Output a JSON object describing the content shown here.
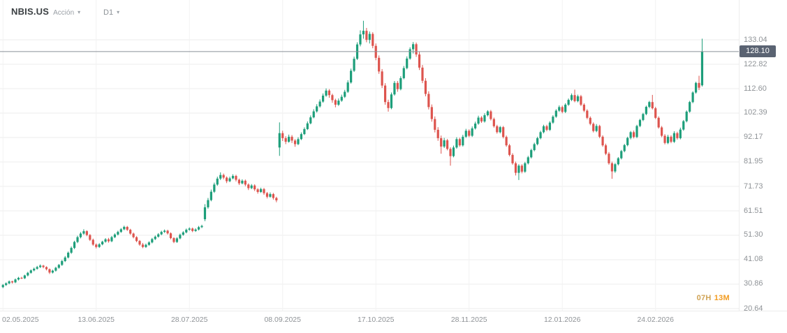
{
  "header": {
    "symbol": "NBIS.US",
    "instrument_type": "Acción",
    "symbol_caret": "▾",
    "timeframe": "D1",
    "timeframe_caret": "▾"
  },
  "price_axis": {
    "current_price_label": "128.10"
  },
  "footer": {
    "countdown_hours": "07H",
    "countdown_minutes": "13M"
  },
  "colors": {
    "up": "#1d9e7a",
    "down": "#dd544e",
    "grid_h": "#ededed",
    "grid_v": "#f2f2f2",
    "price_line": "#8a9199",
    "badge_bg": "#5a6372",
    "axis_text": "#8f9397",
    "countdown_hours": "#d0a355",
    "countdown_minutes": "#f29b1f"
  },
  "chart_data": {
    "type": "candlestick",
    "title": "NBIS.US daily candlestick chart",
    "symbol": "NBIS.US",
    "timeframe": "D1",
    "legend_position": "none",
    "grid": true,
    "current_price": 128.1,
    "ylim": [
      20.64,
      141.0
    ],
    "y_ticks": [
      "133.04",
      "122.82",
      "112.60",
      "102.39",
      "92.17",
      "81.95",
      "71.73",
      "61.51",
      "51.30",
      "41.08",
      "30.86",
      "20.64"
    ],
    "x_tick_labels": [
      "02.05.2025",
      "13.06.2025",
      "28.07.2025",
      "08.09.2025",
      "17.10.2025",
      "28.11.2025",
      "12.01.2026",
      "24.02.2026"
    ],
    "x_tick_indices": [
      0,
      30,
      60,
      90,
      120,
      150,
      180,
      210
    ],
    "ohlc": [
      [
        29.6,
        30.9,
        29.2,
        30.5
      ],
      [
        30.5,
        31.6,
        30.1,
        31.2
      ],
      [
        31.2,
        32.4,
        30.8,
        32.0
      ],
      [
        32.0,
        32.3,
        31.1,
        31.6
      ],
      [
        31.6,
        33.2,
        31.3,
        32.8
      ],
      [
        32.8,
        33.9,
        32.4,
        33.5
      ],
      [
        33.5,
        33.9,
        33.0,
        33.3
      ],
      [
        33.3,
        34.8,
        33.0,
        34.5
      ],
      [
        34.5,
        36.0,
        34.1,
        35.6
      ],
      [
        35.6,
        37.0,
        35.2,
        36.6
      ],
      [
        36.6,
        37.8,
        36.2,
        37.3
      ],
      [
        37.3,
        38.5,
        36.9,
        38.0
      ],
      [
        38.0,
        39.1,
        37.6,
        38.6
      ],
      [
        38.6,
        38.9,
        37.5,
        38.0
      ],
      [
        38.0,
        38.3,
        36.6,
        37.1
      ],
      [
        37.1,
        37.4,
        35.1,
        35.7
      ],
      [
        35.7,
        36.9,
        35.3,
        36.5
      ],
      [
        36.5,
        38.1,
        36.1,
        37.7
      ],
      [
        37.7,
        39.3,
        37.3,
        38.9
      ],
      [
        38.9,
        41.0,
        38.5,
        40.5
      ],
      [
        40.5,
        42.6,
        40.1,
        42.0
      ],
      [
        42.0,
        44.5,
        41.6,
        44.0
      ],
      [
        44.0,
        46.6,
        43.5,
        46.0
      ],
      [
        46.0,
        49.0,
        45.5,
        48.5
      ],
      [
        48.5,
        51.1,
        48.0,
        50.5
      ],
      [
        50.5,
        52.6,
        50.0,
        52.0
      ],
      [
        52.0,
        53.8,
        51.5,
        53.0
      ],
      [
        53.0,
        53.4,
        50.9,
        51.4
      ],
      [
        51.4,
        51.8,
        48.9,
        49.4
      ],
      [
        49.4,
        49.9,
        46.9,
        47.4
      ],
      [
        47.4,
        47.9,
        45.8,
        46.4
      ],
      [
        46.4,
        48.0,
        46.0,
        47.5
      ],
      [
        47.5,
        49.0,
        47.1,
        48.6
      ],
      [
        48.6,
        50.1,
        48.2,
        49.6
      ],
      [
        49.6,
        50.2,
        48.2,
        48.8
      ],
      [
        48.8,
        51.0,
        48.4,
        50.5
      ],
      [
        50.5,
        52.1,
        50.1,
        51.6
      ],
      [
        51.6,
        53.2,
        51.2,
        52.7
      ],
      [
        52.7,
        54.3,
        52.3,
        53.8
      ],
      [
        53.8,
        55.3,
        53.4,
        54.8
      ],
      [
        54.8,
        55.2,
        53.1,
        53.6
      ],
      [
        53.6,
        54.0,
        51.5,
        52.0
      ],
      [
        52.0,
        52.4,
        50.0,
        50.5
      ],
      [
        50.5,
        50.9,
        48.4,
        48.9
      ],
      [
        48.9,
        49.3,
        46.9,
        47.4
      ],
      [
        47.4,
        48.1,
        45.9,
        46.4
      ],
      [
        46.4,
        47.8,
        46.0,
        47.3
      ],
      [
        47.3,
        48.8,
        46.9,
        48.3
      ],
      [
        48.3,
        50.2,
        47.9,
        49.7
      ],
      [
        49.7,
        51.2,
        49.3,
        50.7
      ],
      [
        50.7,
        52.2,
        50.3,
        51.7
      ],
      [
        51.7,
        53.2,
        51.3,
        52.7
      ],
      [
        52.7,
        53.7,
        52.3,
        53.2
      ],
      [
        53.2,
        53.6,
        51.6,
        52.1
      ],
      [
        52.1,
        52.5,
        49.6,
        50.1
      ],
      [
        50.1,
        50.5,
        48.0,
        48.5
      ],
      [
        48.5,
        50.5,
        48.1,
        50.0
      ],
      [
        50.0,
        52.0,
        49.6,
        51.5
      ],
      [
        51.5,
        53.0,
        51.1,
        52.5
      ],
      [
        52.5,
        54.1,
        52.1,
        53.6
      ],
      [
        53.6,
        54.6,
        53.2,
        54.1
      ],
      [
        54.1,
        54.5,
        52.6,
        53.1
      ],
      [
        53.1,
        54.2,
        52.7,
        53.7
      ],
      [
        53.7,
        55.2,
        53.3,
        54.7
      ],
      [
        54.7,
        55.7,
        54.3,
        55.2
      ],
      [
        58.0,
        64.3,
        57.2,
        63.0
      ],
      [
        63.0,
        66.9,
        62.4,
        66.0
      ],
      [
        66.0,
        70.4,
        65.5,
        69.5
      ],
      [
        69.5,
        73.3,
        69.0,
        72.5
      ],
      [
        72.5,
        75.8,
        72.0,
        75.0
      ],
      [
        75.0,
        77.6,
        74.4,
        76.5
      ],
      [
        76.5,
        77.1,
        74.7,
        75.4
      ],
      [
        75.4,
        75.9,
        73.1,
        73.9
      ],
      [
        73.9,
        75.8,
        73.5,
        75.1
      ],
      [
        75.1,
        76.8,
        74.7,
        76.1
      ],
      [
        76.1,
        76.6,
        73.8,
        74.5
      ],
      [
        74.5,
        75.0,
        72.3,
        73.0
      ],
      [
        73.0,
        74.7,
        72.6,
        74.1
      ],
      [
        74.1,
        74.6,
        71.8,
        72.5
      ],
      [
        72.5,
        73.0,
        70.2,
        71.0
      ],
      [
        71.0,
        72.7,
        70.6,
        72.1
      ],
      [
        72.1,
        72.6,
        69.8,
        70.5
      ],
      [
        70.5,
        71.0,
        68.7,
        69.4
      ],
      [
        69.4,
        71.2,
        69.0,
        70.6
      ],
      [
        70.6,
        71.1,
        68.2,
        68.9
      ],
      [
        68.9,
        69.4,
        66.7,
        67.4
      ],
      [
        67.4,
        69.2,
        67.0,
        68.5
      ],
      [
        68.5,
        69.0,
        66.2,
        66.9
      ],
      [
        66.9,
        67.4,
        65.1,
        65.9
      ],
      [
        88.0,
        98.5,
        84.5,
        94.0
      ],
      [
        94.0,
        95.0,
        90.7,
        91.9
      ],
      [
        91.9,
        92.7,
        89.4,
        90.4
      ],
      [
        90.4,
        93.4,
        90.0,
        92.5
      ],
      [
        92.5,
        93.2,
        89.9,
        90.9
      ],
      [
        90.9,
        91.5,
        88.3,
        89.4
      ],
      [
        89.4,
        92.3,
        89.0,
        91.5
      ],
      [
        91.5,
        94.3,
        91.1,
        93.6
      ],
      [
        93.6,
        96.4,
        93.2,
        95.7
      ],
      [
        95.7,
        98.9,
        95.3,
        98.1
      ],
      [
        98.1,
        101.4,
        97.7,
        100.6
      ],
      [
        100.6,
        104.0,
        100.2,
        103.1
      ],
      [
        103.1,
        106.1,
        102.6,
        105.2
      ],
      [
        105.2,
        108.1,
        104.7,
        107.2
      ],
      [
        107.2,
        110.6,
        106.7,
        109.7
      ],
      [
        109.7,
        112.7,
        109.2,
        111.8
      ],
      [
        111.8,
        112.4,
        108.8,
        109.9
      ],
      [
        109.9,
        110.5,
        106.7,
        107.8
      ],
      [
        107.8,
        108.4,
        104.8,
        105.9
      ],
      [
        105.9,
        108.5,
        105.4,
        107.6
      ],
      [
        107.6,
        110.1,
        107.1,
        109.2
      ],
      [
        109.2,
        112.1,
        108.7,
        111.3
      ],
      [
        111.3,
        116.1,
        110.8,
        115.2
      ],
      [
        115.2,
        121.0,
        114.7,
        120.1
      ],
      [
        120.1,
        126.0,
        119.6,
        125.1
      ],
      [
        125.1,
        132.0,
        124.6,
        131.1
      ],
      [
        131.1,
        137.0,
        130.3,
        135.3
      ],
      [
        135.3,
        141.0,
        133.5,
        136.8
      ],
      [
        136.8,
        138.0,
        132.0,
        133.0
      ],
      [
        133.0,
        136.5,
        131.5,
        135.5
      ],
      [
        135.5,
        136.2,
        129.5,
        130.5
      ],
      [
        130.5,
        131.5,
        124.5,
        125.5
      ],
      [
        125.5,
        126.5,
        118.8,
        119.8
      ],
      [
        119.8,
        120.8,
        112.9,
        113.9
      ],
      [
        113.9,
        114.9,
        105.9,
        107.0
      ],
      [
        107.0,
        108.0,
        103.0,
        104.5
      ],
      [
        104.5,
        111.0,
        104.0,
        110.2
      ],
      [
        110.2,
        115.8,
        109.7,
        115.0
      ],
      [
        115.0,
        115.8,
        111.3,
        112.4
      ],
      [
        112.4,
        117.8,
        111.9,
        117.0
      ],
      [
        117.0,
        122.1,
        116.5,
        121.2
      ],
      [
        121.2,
        126.1,
        120.7,
        125.2
      ],
      [
        125.2,
        129.9,
        124.7,
        129.1
      ],
      [
        129.1,
        132.1,
        127.3,
        131.2
      ],
      [
        131.2,
        131.9,
        125.9,
        126.9
      ],
      [
        126.9,
        128.0,
        120.4,
        121.4
      ],
      [
        121.4,
        122.5,
        114.9,
        115.9
      ],
      [
        115.9,
        117.0,
        109.4,
        110.4
      ],
      [
        110.4,
        111.5,
        103.9,
        104.9
      ],
      [
        104.9,
        106.0,
        98.8,
        99.9
      ],
      [
        99.9,
        101.0,
        94.3,
        95.4
      ],
      [
        95.4,
        96.5,
        90.8,
        91.9
      ],
      [
        91.9,
        93.0,
        85.4,
        88.4
      ],
      [
        88.4,
        92.0,
        87.8,
        91.0
      ],
      [
        91.0,
        91.6,
        86.8,
        87.4
      ],
      [
        87.4,
        88.1,
        80.4,
        84.4
      ],
      [
        84.4,
        88.8,
        83.9,
        88.0
      ],
      [
        88.0,
        92.3,
        87.5,
        91.5
      ],
      [
        91.5,
        92.1,
        88.3,
        88.9
      ],
      [
        88.9,
        93.3,
        88.4,
        92.5
      ],
      [
        92.5,
        95.8,
        92.0,
        95.0
      ],
      [
        95.0,
        95.6,
        92.3,
        92.9
      ],
      [
        92.9,
        96.8,
        92.4,
        96.0
      ],
      [
        96.0,
        98.8,
        95.5,
        98.0
      ],
      [
        98.0,
        101.3,
        97.5,
        100.5
      ],
      [
        100.5,
        101.1,
        98.3,
        98.9
      ],
      [
        98.9,
        102.3,
        98.4,
        101.5
      ],
      [
        101.5,
        103.6,
        101.0,
        103.1
      ],
      [
        103.1,
        103.7,
        99.3,
        99.9
      ],
      [
        99.9,
        100.5,
        96.3,
        96.9
      ],
      [
        96.9,
        97.5,
        93.8,
        94.4
      ],
      [
        94.4,
        97.0,
        93.9,
        96.5
      ],
      [
        96.5,
        97.0,
        91.8,
        92.4
      ],
      [
        92.4,
        93.0,
        88.3,
        88.9
      ],
      [
        88.9,
        89.5,
        84.3,
        84.9
      ],
      [
        84.9,
        85.6,
        80.8,
        81.4
      ],
      [
        81.4,
        82.1,
        76.3,
        77.4
      ],
      [
        77.4,
        81.0,
        74.4,
        80.4
      ],
      [
        80.4,
        81.0,
        77.2,
        77.9
      ],
      [
        77.9,
        82.0,
        77.4,
        81.4
      ],
      [
        81.4,
        84.5,
        80.9,
        83.9
      ],
      [
        83.9,
        87.5,
        83.4,
        86.9
      ],
      [
        86.9,
        90.0,
        86.4,
        89.4
      ],
      [
        89.4,
        92.5,
        88.9,
        91.9
      ],
      [
        91.9,
        95.0,
        91.4,
        94.4
      ],
      [
        94.4,
        97.5,
        93.9,
        96.9
      ],
      [
        96.9,
        97.5,
        94.8,
        95.4
      ],
      [
        95.4,
        99.0,
        94.9,
        98.4
      ],
      [
        98.4,
        101.5,
        97.9,
        100.9
      ],
      [
        100.9,
        104.0,
        100.4,
        103.4
      ],
      [
        103.4,
        105.6,
        102.9,
        104.9
      ],
      [
        104.9,
        105.5,
        102.3,
        102.9
      ],
      [
        102.9,
        106.5,
        102.4,
        105.9
      ],
      [
        105.9,
        108.5,
        105.4,
        107.9
      ],
      [
        107.9,
        110.6,
        107.4,
        109.9
      ],
      [
        109.9,
        112.2,
        106.9,
        107.4
      ],
      [
        107.4,
        110.1,
        106.9,
        109.4
      ],
      [
        109.4,
        110.0,
        105.3,
        105.9
      ],
      [
        105.9,
        106.5,
        102.8,
        103.4
      ],
      [
        103.4,
        104.0,
        99.8,
        100.4
      ],
      [
        100.4,
        101.0,
        97.3,
        97.9
      ],
      [
        97.9,
        98.5,
        94.3,
        94.9
      ],
      [
        94.9,
        97.8,
        94.4,
        97.0
      ],
      [
        97.0,
        97.5,
        91.9,
        92.5
      ],
      [
        92.5,
        93.1,
        88.3,
        88.9
      ],
      [
        88.9,
        89.6,
        84.8,
        85.4
      ],
      [
        85.4,
        86.1,
        80.8,
        81.4
      ],
      [
        81.4,
        82.1,
        74.9,
        78.0
      ],
      [
        78.0,
        81.5,
        77.4,
        81.0
      ],
      [
        81.0,
        84.0,
        80.5,
        83.5
      ],
      [
        83.5,
        87.0,
        83.0,
        86.5
      ],
      [
        86.5,
        89.5,
        86.0,
        89.0
      ],
      [
        89.0,
        92.5,
        88.5,
        92.0
      ],
      [
        92.0,
        94.9,
        91.4,
        94.4
      ],
      [
        94.4,
        95.1,
        91.8,
        92.4
      ],
      [
        92.4,
        97.5,
        91.9,
        97.0
      ],
      [
        97.0,
        100.0,
        96.5,
        99.5
      ],
      [
        99.5,
        102.5,
        99.0,
        102.0
      ],
      [
        102.0,
        105.5,
        101.5,
        105.0
      ],
      [
        105.0,
        107.5,
        104.4,
        107.0
      ],
      [
        107.0,
        110.0,
        103.9,
        104.4
      ],
      [
        104.4,
        105.0,
        99.9,
        100.4
      ],
      [
        100.4,
        101.0,
        95.9,
        96.4
      ],
      [
        96.4,
        97.0,
        92.3,
        92.9
      ],
      [
        92.9,
        93.6,
        89.3,
        89.9
      ],
      [
        89.9,
        93.3,
        89.4,
        92.5
      ],
      [
        92.5,
        93.1,
        89.8,
        90.4
      ],
      [
        90.4,
        94.8,
        89.9,
        94.0
      ],
      [
        94.0,
        94.6,
        91.3,
        91.9
      ],
      [
        91.9,
        96.3,
        91.4,
        95.5
      ],
      [
        95.5,
        99.5,
        95.0,
        99.0
      ],
      [
        99.0,
        103.5,
        98.5,
        103.0
      ],
      [
        103.0,
        107.5,
        102.5,
        107.0
      ],
      [
        107.0,
        111.5,
        106.5,
        111.0
      ],
      [
        111.0,
        115.5,
        110.5,
        115.0
      ],
      [
        115.0,
        118.0,
        112.0,
        113.0
      ],
      [
        114.0,
        133.5,
        113.5,
        128.1
      ]
    ]
  }
}
